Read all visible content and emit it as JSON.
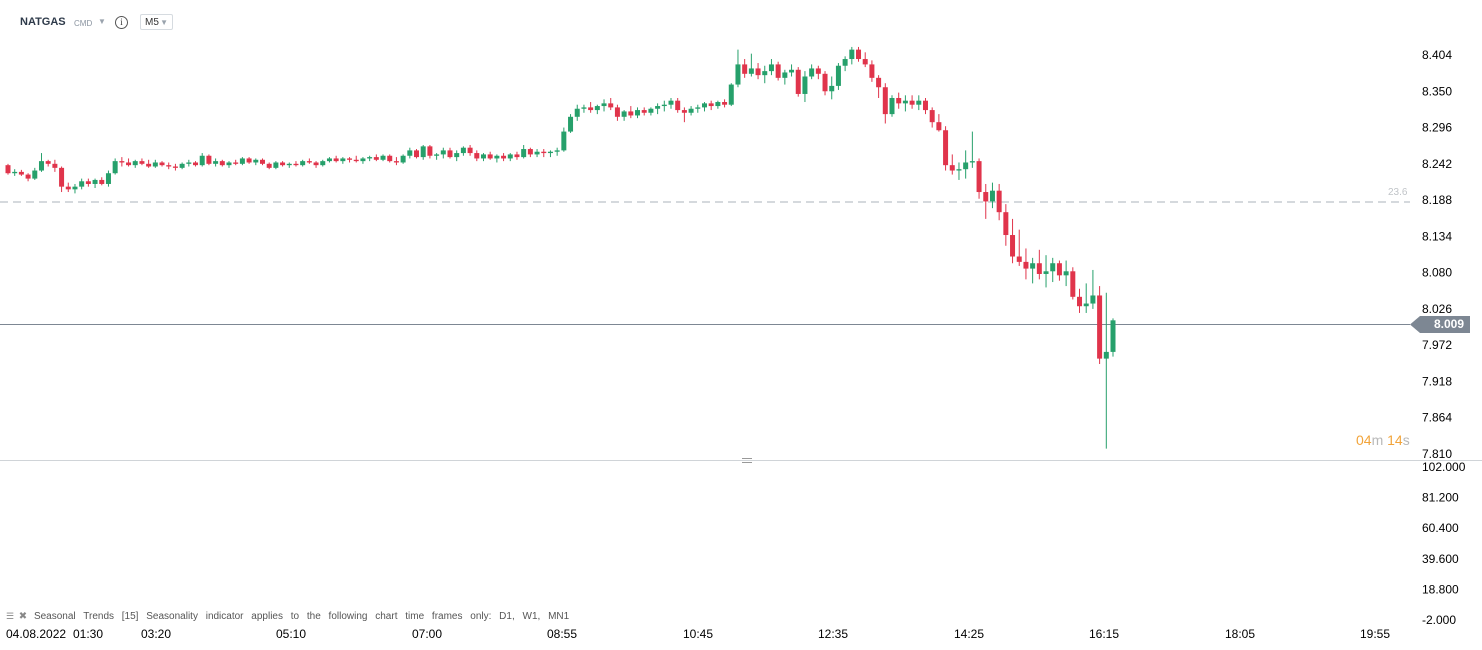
{
  "header": {
    "symbol": "NATGAS",
    "exchange": "CMD",
    "info_icon": "info-icon",
    "timeframe": "M5"
  },
  "price_axis": [
    "8.404",
    "8.350",
    "8.296",
    "8.242",
    "8.188",
    "8.134",
    "8.080",
    "8.026",
    "7.972",
    "7.918",
    "7.864",
    "7.810"
  ],
  "indicator_axis": [
    "102.000",
    "81.200",
    "60.400",
    "39.600",
    "18.800",
    "-2.000"
  ],
  "time_axis": [
    "04.08.2022",
    "01:30",
    "03:20",
    "05:10",
    "07:00",
    "08:55",
    "10:45",
    "12:35",
    "14:25",
    "16:15",
    "18:05",
    "19:55"
  ],
  "current_price": "8.009",
  "fib_level": {
    "label": "23.6",
    "price": 8.188
  },
  "countdown": {
    "min": "04",
    "min_unit": "m",
    "sec": "14",
    "sec_unit": "s"
  },
  "indicator_note": "Seasonal Trends [15] Seasonality indicator applies to the following chart time frames only: D1, W1, MN1",
  "colors": {
    "up": "#26a06b",
    "down": "#e0344b",
    "price_line": "#7d8793",
    "timer": "#f2a43a"
  },
  "chart_data": {
    "type": "candlestick",
    "symbol": "NATGAS",
    "timeframe": "M5",
    "y_ticks": [
      8.404,
      8.35,
      8.296,
      8.242,
      8.188,
      8.134,
      8.08,
      8.026,
      7.972,
      7.918,
      7.864,
      7.81
    ],
    "candles": [
      [
        8.24,
        8.242,
        8.226,
        8.228
      ],
      [
        8.228,
        8.234,
        8.224,
        8.23
      ],
      [
        8.23,
        8.233,
        8.224,
        8.226
      ],
      [
        8.226,
        8.228,
        8.216,
        8.22
      ],
      [
        8.22,
        8.236,
        8.218,
        8.232
      ],
      [
        8.232,
        8.258,
        8.23,
        8.246
      ],
      [
        8.246,
        8.248,
        8.238,
        8.242
      ],
      [
        8.242,
        8.248,
        8.23,
        8.236
      ],
      [
        8.236,
        8.238,
        8.2,
        8.208
      ],
      [
        8.208,
        8.214,
        8.2,
        8.204
      ],
      [
        8.204,
        8.212,
        8.198,
        8.208
      ],
      [
        8.208,
        8.22,
        8.204,
        8.216
      ],
      [
        8.216,
        8.22,
        8.208,
        8.212
      ],
      [
        8.212,
        8.22,
        8.206,
        8.218
      ],
      [
        8.218,
        8.222,
        8.21,
        8.212
      ],
      [
        8.212,
        8.232,
        8.208,
        8.228
      ],
      [
        8.228,
        8.25,
        8.226,
        8.246
      ],
      [
        8.246,
        8.252,
        8.238,
        8.244
      ],
      [
        8.244,
        8.25,
        8.238,
        8.24
      ],
      [
        8.24,
        8.248,
        8.236,
        8.246
      ],
      [
        8.246,
        8.25,
        8.24,
        8.242
      ],
      [
        8.242,
        8.248,
        8.236,
        8.238
      ],
      [
        8.238,
        8.248,
        8.236,
        8.244
      ],
      [
        8.244,
        8.246,
        8.238,
        8.24
      ],
      [
        8.24,
        8.244,
        8.234,
        8.238
      ],
      [
        8.238,
        8.242,
        8.232,
        8.236
      ],
      [
        8.236,
        8.244,
        8.234,
        8.242
      ],
      [
        8.242,
        8.248,
        8.238,
        8.244
      ],
      [
        8.244,
        8.246,
        8.238,
        8.24
      ],
      [
        8.24,
        8.258,
        8.238,
        8.254
      ],
      [
        8.254,
        8.256,
        8.24,
        8.242
      ],
      [
        8.242,
        8.25,
        8.238,
        8.246
      ],
      [
        8.246,
        8.248,
        8.238,
        8.24
      ],
      [
        8.24,
        8.246,
        8.236,
        8.244
      ],
      [
        8.244,
        8.248,
        8.24,
        8.242
      ],
      [
        8.242,
        8.252,
        8.24,
        8.25
      ],
      [
        8.25,
        8.252,
        8.242,
        8.244
      ],
      [
        8.244,
        8.25,
        8.24,
        8.248
      ],
      [
        8.248,
        8.25,
        8.24,
        8.242
      ],
      [
        8.242,
        8.244,
        8.234,
        8.236
      ],
      [
        8.236,
        8.246,
        8.234,
        8.244
      ],
      [
        8.244,
        8.246,
        8.238,
        8.24
      ],
      [
        8.24,
        8.244,
        8.236,
        8.242
      ],
      [
        8.242,
        8.246,
        8.238,
        8.24
      ],
      [
        8.24,
        8.248,
        8.238,
        8.246
      ],
      [
        8.246,
        8.25,
        8.242,
        8.244
      ],
      [
        8.244,
        8.246,
        8.236,
        8.24
      ],
      [
        8.24,
        8.248,
        8.238,
        8.246
      ],
      [
        8.246,
        8.252,
        8.244,
        8.25
      ],
      [
        8.25,
        8.254,
        8.244,
        8.246
      ],
      [
        8.246,
        8.252,
        8.242,
        8.25
      ],
      [
        8.25,
        8.252,
        8.244,
        8.248
      ],
      [
        8.248,
        8.254,
        8.244,
        8.246
      ],
      [
        8.246,
        8.252,
        8.242,
        8.25
      ],
      [
        8.25,
        8.254,
        8.246,
        8.252
      ],
      [
        8.252,
        8.256,
        8.246,
        8.248
      ],
      [
        8.248,
        8.256,
        8.246,
        8.254
      ],
      [
        8.254,
        8.256,
        8.244,
        8.246
      ],
      [
        8.246,
        8.252,
        8.24,
        8.244
      ],
      [
        8.244,
        8.256,
        8.242,
        8.254
      ],
      [
        8.254,
        8.266,
        8.25,
        8.262
      ],
      [
        8.262,
        8.264,
        8.25,
        8.252
      ],
      [
        8.252,
        8.27,
        8.248,
        8.268
      ],
      [
        8.268,
        8.27,
        8.25,
        8.254
      ],
      [
        8.254,
        8.258,
        8.248,
        8.256
      ],
      [
        8.256,
        8.266,
        8.25,
        8.262
      ],
      [
        8.262,
        8.266,
        8.25,
        8.252
      ],
      [
        8.252,
        8.262,
        8.246,
        8.258
      ],
      [
        8.258,
        8.268,
        8.254,
        8.266
      ],
      [
        8.266,
        8.27,
        8.254,
        8.258
      ],
      [
        8.258,
        8.262,
        8.246,
        8.25
      ],
      [
        8.25,
        8.258,
        8.246,
        8.256
      ],
      [
        8.256,
        8.26,
        8.248,
        8.25
      ],
      [
        8.25,
        8.256,
        8.244,
        8.254
      ],
      [
        8.254,
        8.258,
        8.246,
        8.25
      ],
      [
        8.25,
        8.258,
        8.246,
        8.256
      ],
      [
        8.256,
        8.26,
        8.248,
        8.252
      ],
      [
        8.252,
        8.27,
        8.25,
        8.264
      ],
      [
        8.264,
        8.266,
        8.252,
        8.256
      ],
      [
        8.256,
        8.264,
        8.252,
        8.26
      ],
      [
        8.26,
        8.264,
        8.252,
        8.258
      ],
      [
        8.258,
        8.262,
        8.252,
        8.26
      ],
      [
        8.26,
        8.266,
        8.254,
        8.262
      ],
      [
        8.262,
        8.296,
        8.26,
        8.29
      ],
      [
        8.29,
        8.316,
        8.288,
        8.312
      ],
      [
        8.312,
        8.33,
        8.306,
        8.324
      ],
      [
        8.324,
        8.33,
        8.318,
        8.326
      ],
      [
        8.326,
        8.334,
        8.318,
        8.322
      ],
      [
        8.322,
        8.33,
        8.316,
        8.328
      ],
      [
        8.328,
        8.338,
        8.32,
        8.332
      ],
      [
        8.332,
        8.34,
        8.322,
        8.326
      ],
      [
        8.326,
        8.33,
        8.306,
        8.312
      ],
      [
        8.312,
        8.322,
        8.306,
        8.32
      ],
      [
        8.32,
        8.328,
        8.31,
        8.314
      ],
      [
        8.314,
        8.326,
        8.31,
        8.322
      ],
      [
        8.322,
        8.326,
        8.314,
        8.318
      ],
      [
        8.318,
        8.326,
        8.314,
        8.324
      ],
      [
        8.324,
        8.332,
        8.316,
        8.328
      ],
      [
        8.328,
        8.336,
        8.32,
        8.33
      ],
      [
        8.33,
        8.34,
        8.324,
        8.336
      ],
      [
        8.336,
        8.34,
        8.318,
        8.322
      ],
      [
        8.322,
        8.326,
        8.304,
        8.318
      ],
      [
        8.318,
        8.328,
        8.314,
        8.324
      ],
      [
        8.324,
        8.33,
        8.318,
        8.326
      ],
      [
        8.326,
        8.334,
        8.32,
        8.332
      ],
      [
        8.332,
        8.336,
        8.322,
        8.328
      ],
      [
        8.328,
        8.336,
        8.324,
        8.334
      ],
      [
        8.334,
        8.338,
        8.326,
        8.33
      ],
      [
        8.33,
        8.362,
        8.328,
        8.36
      ],
      [
        8.36,
        8.412,
        8.356,
        8.39
      ],
      [
        8.39,
        8.398,
        8.37,
        8.376
      ],
      [
        8.376,
        8.406,
        8.372,
        8.384
      ],
      [
        8.384,
        8.392,
        8.368,
        8.374
      ],
      [
        8.374,
        8.388,
        8.362,
        8.38
      ],
      [
        8.38,
        8.398,
        8.374,
        8.39
      ],
      [
        8.39,
        8.394,
        8.366,
        8.37
      ],
      [
        8.37,
        8.382,
        8.36,
        8.378
      ],
      [
        8.378,
        8.39,
        8.372,
        8.382
      ],
      [
        8.382,
        8.386,
        8.342,
        8.346
      ],
      [
        8.346,
        8.38,
        8.334,
        8.372
      ],
      [
        8.372,
        8.39,
        8.368,
        8.384
      ],
      [
        8.384,
        8.388,
        8.368,
        8.376
      ],
      [
        8.376,
        8.38,
        8.344,
        8.35
      ],
      [
        8.35,
        8.372,
        8.338,
        8.358
      ],
      [
        8.358,
        8.392,
        8.352,
        8.388
      ],
      [
        8.388,
        8.402,
        8.38,
        8.398
      ],
      [
        8.398,
        8.416,
        8.39,
        8.412
      ],
      [
        8.412,
        8.416,
        8.394,
        8.398
      ],
      [
        8.398,
        8.408,
        8.386,
        8.39
      ],
      [
        8.39,
        8.396,
        8.364,
        8.37
      ],
      [
        8.37,
        8.374,
        8.34,
        8.356
      ],
      [
        8.356,
        8.362,
        8.302,
        8.316
      ],
      [
        8.316,
        8.344,
        8.312,
        8.34
      ],
      [
        8.34,
        8.348,
        8.324,
        8.332
      ],
      [
        8.332,
        8.344,
        8.32,
        8.336
      ],
      [
        8.336,
        8.344,
        8.324,
        8.33
      ],
      [
        8.33,
        8.344,
        8.322,
        8.336
      ],
      [
        8.336,
        8.34,
        8.316,
        8.322
      ],
      [
        8.322,
        8.326,
        8.296,
        8.304
      ],
      [
        8.304,
        8.316,
        8.29,
        8.292
      ],
      [
        8.292,
        8.298,
        8.232,
        8.24
      ],
      [
        8.24,
        8.256,
        8.226,
        8.232
      ],
      [
        8.232,
        8.244,
        8.218,
        8.234
      ],
      [
        8.234,
        8.262,
        8.22,
        8.244
      ],
      [
        8.244,
        8.29,
        8.236,
        8.246
      ],
      [
        8.246,
        8.25,
        8.19,
        8.2
      ],
      [
        8.2,
        8.212,
        8.16,
        8.186
      ],
      [
        8.186,
        8.214,
        8.176,
        8.202
      ],
      [
        8.202,
        8.212,
        8.158,
        8.17
      ],
      [
        8.17,
        8.182,
        8.12,
        8.136
      ],
      [
        8.136,
        8.16,
        8.094,
        8.104
      ],
      [
        8.104,
        8.144,
        8.09,
        8.096
      ],
      [
        8.096,
        8.116,
        8.07,
        8.086
      ],
      [
        8.086,
        8.102,
        8.064,
        8.094
      ],
      [
        8.094,
        8.114,
        8.07,
        8.078
      ],
      [
        8.078,
        8.106,
        8.058,
        8.082
      ],
      [
        8.082,
        8.102,
        8.066,
        8.094
      ],
      [
        8.094,
        8.098,
        8.068,
        8.076
      ],
      [
        8.076,
        8.098,
        8.06,
        8.082
      ],
      [
        8.082,
        8.088,
        8.04,
        8.044
      ],
      [
        8.044,
        8.056,
        8.02,
        8.03
      ],
      [
        8.03,
        8.064,
        8.02,
        8.034
      ],
      [
        8.034,
        8.084,
        8.026,
        8.046
      ],
      [
        8.046,
        8.06,
        7.944,
        7.952
      ],
      [
        7.952,
        8.05,
        7.818,
        7.962
      ],
      [
        7.962,
        8.012,
        7.955,
        8.009
      ]
    ]
  }
}
